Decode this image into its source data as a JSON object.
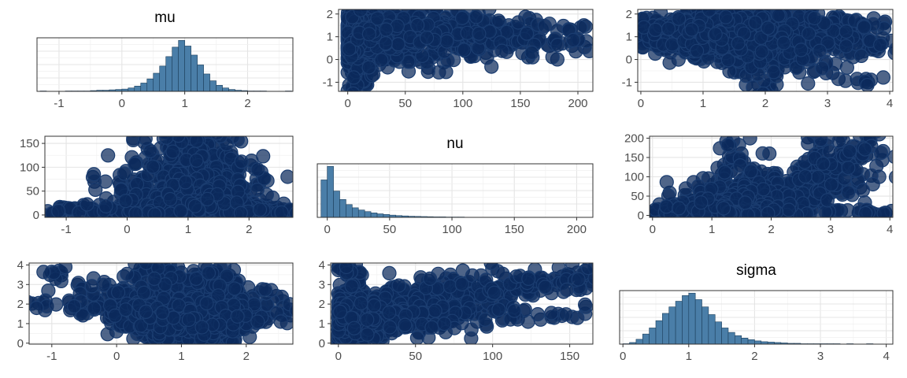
{
  "chart_data": {
    "type": "pairs",
    "variables": [
      "mu",
      "nu",
      "sigma"
    ],
    "colors": {
      "hist_fill": "#4a7ea8",
      "hist_stroke": "#1d3f5c",
      "point_fill": "#0b2a5c",
      "point_stroke": "#1b3d70",
      "grid": "#e4e4e4",
      "frame": "#333333"
    },
    "panels": [
      {
        "id": "mu-hist",
        "type": "histogram",
        "title": "mu",
        "xlim": [
          -1.35,
          2.72
        ],
        "xticks": [
          -1,
          0,
          1,
          2
        ],
        "xtick_labels": [
          "-1",
          "0",
          "1",
          "2"
        ],
        "bins": {
          "start": -1.3,
          "width": 0.1,
          "counts": [
            1,
            0,
            0,
            0,
            1,
            1,
            1,
            1,
            2,
            3,
            3,
            4,
            5,
            6,
            9,
            14,
            22,
            33,
            48,
            67,
            92,
            117,
            135,
            120,
            96,
            70,
            46,
            28,
            16,
            9,
            5,
            3,
            2,
            1,
            1,
            1,
            0,
            0,
            0,
            1
          ]
        }
      },
      {
        "id": "nu-vs-mu",
        "type": "scatter",
        "x_var": "nu",
        "y_var": "mu",
        "xlim": [
          -8,
          213
        ],
        "ylim": [
          -1.4,
          2.2
        ],
        "xticks": [
          0,
          50,
          100,
          150,
          200
        ],
        "xtick_labels": [
          "0",
          "50",
          "100",
          "150",
          "200"
        ],
        "yticks": [
          -1,
          0,
          1,
          2
        ],
        "ytick_labels": [
          "-1",
          "0",
          "1",
          "2"
        ]
      },
      {
        "id": "sigma-vs-mu",
        "type": "scatter",
        "x_var": "sigma",
        "y_var": "mu",
        "xlim": [
          -0.05,
          4.05
        ],
        "ylim": [
          -1.4,
          2.2
        ],
        "xticks": [
          0,
          1,
          2,
          3,
          4
        ],
        "xtick_labels": [
          "0",
          "1",
          "2",
          "3",
          "4"
        ],
        "yticks": [
          -1,
          0,
          1,
          2
        ],
        "ytick_labels": [
          "-1",
          "0",
          "1",
          "2"
        ]
      },
      {
        "id": "mu-vs-nu",
        "type": "scatter",
        "x_var": "mu",
        "y_var": "nu",
        "xlim": [
          -1.35,
          2.72
        ],
        "ylim": [
          -5,
          165
        ],
        "xticks": [
          -1,
          0,
          1,
          2
        ],
        "xtick_labels": [
          "-1",
          "0",
          "1",
          "2"
        ],
        "yticks": [
          0,
          50,
          100,
          150
        ],
        "ytick_labels": [
          "0",
          "50",
          "100",
          "150"
        ]
      },
      {
        "id": "nu-hist",
        "type": "histogram",
        "title": "nu",
        "xlim": [
          -8,
          213
        ],
        "xticks": [
          0,
          50,
          100,
          150,
          200
        ],
        "xtick_labels": [
          "0",
          "50",
          "100",
          "150",
          "200"
        ],
        "bins": {
          "start": -5,
          "width": 5,
          "counts": [
            235,
            320,
            165,
            112,
            80,
            60,
            46,
            36,
            28,
            22,
            18,
            14,
            11,
            9,
            7,
            6,
            5,
            4,
            3,
            3,
            2,
            2,
            2,
            1,
            1,
            1,
            1,
            1,
            1,
            0,
            1,
            1,
            1,
            0,
            0,
            1,
            0,
            1,
            0,
            0,
            0,
            1
          ]
        }
      },
      {
        "id": "sigma-vs-nu",
        "type": "scatter",
        "x_var": "sigma",
        "y_var": "nu",
        "xlim": [
          -0.05,
          4.05
        ],
        "ylim": [
          -5,
          205
        ],
        "xticks": [
          0,
          1,
          2,
          3,
          4
        ],
        "xtick_labels": [
          "0",
          "1",
          "2",
          "3",
          "4"
        ],
        "yticks": [
          0,
          50,
          100,
          150,
          200
        ],
        "ytick_labels": [
          "0",
          "50",
          "100",
          "150",
          "200"
        ]
      },
      {
        "id": "mu-vs-sigma",
        "type": "scatter",
        "x_var": "mu",
        "y_var": "sigma",
        "xlim": [
          -1.35,
          2.72
        ],
        "ylim": [
          -0.05,
          4.1
        ],
        "xticks": [
          -1,
          0,
          1,
          2
        ],
        "xtick_labels": [
          "-1",
          "0",
          "1",
          "2"
        ],
        "yticks": [
          0,
          1,
          2,
          3,
          4
        ],
        "ytick_labels": [
          "0",
          "1",
          "2",
          "3",
          "4"
        ]
      },
      {
        "id": "nu-vs-sigma",
        "type": "scatter",
        "x_var": "nu",
        "y_var": "sigma",
        "xlim": [
          -5,
          165
        ],
        "ylim": [
          -0.05,
          4.1
        ],
        "xticks": [
          0,
          50,
          100,
          150
        ],
        "xtick_labels": [
          "0",
          "50",
          "100",
          "150"
        ],
        "yticks": [
          0,
          1,
          2,
          3,
          4
        ],
        "ytick_labels": [
          "0",
          "1",
          "2",
          "3",
          "4"
        ]
      },
      {
        "id": "sigma-hist",
        "type": "histogram",
        "title": "sigma",
        "xlim": [
          -0.05,
          4.1
        ],
        "xticks": [
          0,
          1,
          2,
          3,
          4
        ],
        "xtick_labels": [
          "0",
          "1",
          "2",
          "3",
          "4"
        ],
        "bins": {
          "start": 0.0,
          "width": 0.1,
          "counts": [
            1,
            4,
            12,
            25,
            40,
            58,
            76,
            92,
            106,
            120,
            126,
            110,
            92,
            73,
            55,
            40,
            29,
            21,
            15,
            11,
            8,
            6,
            5,
            4,
            3,
            2,
            2,
            1,
            1,
            1,
            1,
            1,
            1,
            0,
            1,
            0,
            0,
            1
          ]
        }
      }
    ],
    "samples": [
      {
        "mu": 1.05,
        "nu": 4,
        "sigma": 0.3
      },
      {
        "mu": 1.2,
        "nu": 2,
        "sigma": 0.25
      },
      {
        "mu": 0.9,
        "nu": 3,
        "sigma": 0.35
      },
      {
        "mu": 1.25,
        "nu": 6,
        "sigma": 0.4
      },
      {
        "mu": 0.75,
        "nu": 5,
        "sigma": 0.5
      },
      {
        "mu": 1.4,
        "nu": 8,
        "sigma": 0.45
      },
      {
        "mu": 1.6,
        "nu": 2,
        "sigma": 0.55
      },
      {
        "mu": 0.5,
        "nu": 4,
        "sigma": 0.6
      },
      {
        "mu": 1.1,
        "nu": 12,
        "sigma": 0.65
      },
      {
        "mu": 1.3,
        "nu": 1,
        "sigma": 0.2
      },
      {
        "mu": 0.95,
        "nu": 15,
        "sigma": 0.7
      },
      {
        "mu": 1.5,
        "nu": 10,
        "sigma": 0.75
      },
      {
        "mu": 0.65,
        "nu": 7,
        "sigma": 0.8
      },
      {
        "mu": 1.8,
        "nu": 3,
        "sigma": 0.85
      },
      {
        "mu": 1.0,
        "nu": 20,
        "sigma": 0.9
      },
      {
        "mu": 1.15,
        "nu": 9,
        "sigma": 0.95
      },
      {
        "mu": 0.85,
        "nu": 25,
        "sigma": 1.0
      },
      {
        "mu": 1.35,
        "nu": 14,
        "sigma": 1.05
      },
      {
        "mu": 0.4,
        "nu": 6,
        "sigma": 1.1
      },
      {
        "mu": 1.7,
        "nu": 18,
        "sigma": 1.15
      },
      {
        "mu": 1.05,
        "nu": 30,
        "sigma": 1.2
      },
      {
        "mu": 1.2,
        "nu": 11,
        "sigma": 1.25
      },
      {
        "mu": 0.7,
        "nu": 35,
        "sigma": 1.3
      },
      {
        "mu": 1.45,
        "nu": 22,
        "sigma": 1.35
      },
      {
        "mu": 0.2,
        "nu": 8,
        "sigma": 1.4
      },
      {
        "mu": 1.9,
        "nu": 16,
        "sigma": 1.45
      },
      {
        "mu": 1.1,
        "nu": 40,
        "sigma": 1.5
      },
      {
        "mu": 1.25,
        "nu": 28,
        "sigma": 1.55
      },
      {
        "mu": 0.8,
        "nu": 45,
        "sigma": 1.6
      },
      {
        "mu": 1.55,
        "nu": 33,
        "sigma": 1.65
      },
      {
        "mu": 0.6,
        "nu": 12,
        "sigma": 1.7
      },
      {
        "mu": 1.0,
        "nu": 50,
        "sigma": 1.75
      },
      {
        "mu": 1.3,
        "nu": 38,
        "sigma": 1.8
      },
      {
        "mu": 0.9,
        "nu": 55,
        "sigma": 1.85
      },
      {
        "mu": 1.6,
        "nu": 24,
        "sigma": 1.9
      },
      {
        "mu": 0.3,
        "nu": 19,
        "sigma": 1.95
      },
      {
        "mu": 1.15,
        "nu": 60,
        "sigma": 2.0
      },
      {
        "mu": 0.75,
        "nu": 42,
        "sigma": 2.05
      },
      {
        "mu": 1.4,
        "nu": 65,
        "sigma": 2.1
      },
      {
        "mu": 1.05,
        "nu": 70,
        "sigma": 2.15
      },
      {
        "mu": 0.55,
        "nu": 27,
        "sigma": 2.2
      },
      {
        "mu": 1.75,
        "nu": 48,
        "sigma": 2.25
      },
      {
        "mu": 1.2,
        "nu": 75,
        "sigma": 2.3
      },
      {
        "mu": 0.95,
        "nu": 80,
        "sigma": 2.35
      },
      {
        "mu": 1.5,
        "nu": 58,
        "sigma": 2.4
      },
      {
        "mu": 0.45,
        "nu": 36,
        "sigma": 2.5
      },
      {
        "mu": 1.1,
        "nu": 85,
        "sigma": 2.55
      },
      {
        "mu": 1.35,
        "nu": 90,
        "sigma": 2.6
      },
      {
        "mu": 0.85,
        "nu": 62,
        "sigma": 2.7
      },
      {
        "mu": 1.65,
        "nu": 95,
        "sigma": 2.75
      },
      {
        "mu": 1.0,
        "nu": 100,
        "sigma": 2.8
      },
      {
        "mu": 1.25,
        "nu": 105,
        "sigma": 2.85
      },
      {
        "mu": 0.7,
        "nu": 110,
        "sigma": 2.9
      },
      {
        "mu": 1.45,
        "nu": 115,
        "sigma": 2.95
      },
      {
        "mu": 1.15,
        "nu": 120,
        "sigma": 3.0
      },
      {
        "mu": 0.9,
        "nu": 125,
        "sigma": 3.05
      },
      {
        "mu": 1.3,
        "nu": 130,
        "sigma": 3.1
      },
      {
        "mu": 1.05,
        "nu": 135,
        "sigma": 3.2
      },
      {
        "mu": 1.5,
        "nu": 140,
        "sigma": 3.3
      },
      {
        "mu": 0.8,
        "nu": 145,
        "sigma": 3.4
      },
      {
        "mu": 1.2,
        "nu": 150,
        "sigma": 3.5
      },
      {
        "mu": 1.0,
        "nu": 155,
        "sigma": 3.6
      },
      {
        "mu": 0.6,
        "nu": 160,
        "sigma": 3.7
      },
      {
        "mu": 1.4,
        "nu": 2,
        "sigma": 3.8
      },
      {
        "mu": 0.25,
        "nu": 5,
        "sigma": 2.5
      },
      {
        "mu": -0.2,
        "nu": 3,
        "sigma": 2.2
      },
      {
        "mu": -0.5,
        "nu": 7,
        "sigma": 2.8
      },
      {
        "mu": -1.0,
        "nu": 10,
        "sigma": 3.65
      },
      {
        "mu": -1.2,
        "nu": 4,
        "sigma": 2.05
      },
      {
        "mu": -0.7,
        "nu": 14,
        "sigma": 1.8
      },
      {
        "mu": -0.3,
        "nu": 9,
        "sigma": 2.1
      },
      {
        "mu": 2.1,
        "nu": 6,
        "sigma": 2.4
      },
      {
        "mu": 2.3,
        "nu": 13,
        "sigma": 2.0
      },
      {
        "mu": 2.55,
        "nu": 8,
        "sigma": 1.45
      },
      {
        "mu": 2.0,
        "nu": 20,
        "sigma": 1.7
      },
      {
        "mu": 1.85,
        "nu": 31,
        "sigma": 2.6
      },
      {
        "mu": 0.35,
        "nu": 54,
        "sigma": 3.2
      },
      {
        "mu": 0.55,
        "nu": 140,
        "sigma": 1.3
      },
      {
        "mu": 1.3,
        "nu": 160,
        "sigma": 1.5
      },
      {
        "mu": 1.0,
        "nu": 145,
        "sigma": 1.4
      },
      {
        "mu": 0.6,
        "nu": 175,
        "sigma": 2.85
      },
      {
        "mu": 0.3,
        "nu": 120,
        "sigma": 1.65
      },
      {
        "mu": 1.6,
        "nu": 105,
        "sigma": 2.9
      },
      {
        "mu": 1.8,
        "nu": 85,
        "sigma": 1.6
      },
      {
        "mu": 0.1,
        "nu": 70,
        "sigma": 1.75
      },
      {
        "mu": -0.1,
        "nu": 45,
        "sigma": 1.9
      },
      {
        "mu": 0.0,
        "nu": 60,
        "sigma": 2.3
      },
      {
        "mu": 1.95,
        "nu": 40,
        "sigma": 1.25
      },
      {
        "mu": 2.2,
        "nu": 90,
        "sigma": 1.1
      },
      {
        "mu": 0.15,
        "nu": 110,
        "sigma": 2.65
      },
      {
        "mu": 1.55,
        "nu": 12,
        "sigma": 0.35
      },
      {
        "mu": 0.9,
        "nu": 1,
        "sigma": 0.15
      },
      {
        "mu": 1.25,
        "nu": 3,
        "sigma": 0.1
      },
      {
        "mu": 1.05,
        "nu": 2,
        "sigma": 0.6
      },
      {
        "mu": 1.35,
        "nu": 5,
        "sigma": 0.85
      },
      {
        "mu": 0.8,
        "nu": 9,
        "sigma": 1.05
      }
    ]
  }
}
